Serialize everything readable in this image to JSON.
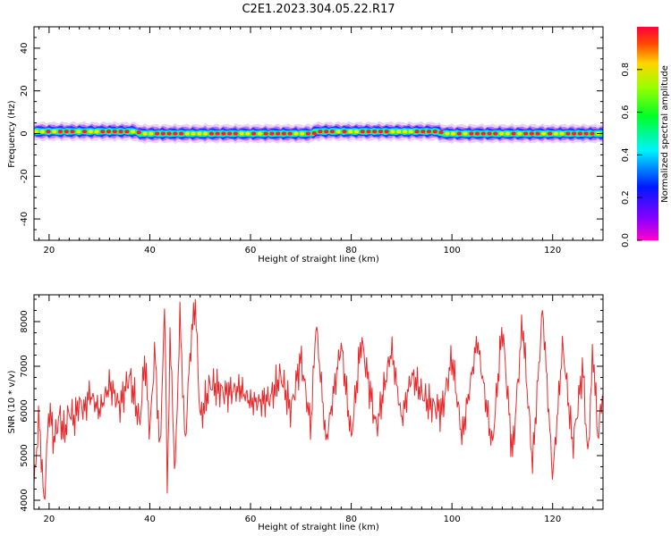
{
  "title": "C2E1.2023.304.05.22.R17",
  "chart_data": [
    {
      "type": "heatmap",
      "xlabel": "Height of straight line (km)",
      "ylabel": "Frequency (Hz)",
      "xlim": [
        17,
        130
      ],
      "ylim": [
        -50,
        50
      ],
      "xticks": [
        20,
        40,
        60,
        80,
        100,
        120
      ],
      "yticks": [
        -40,
        -20,
        0,
        20,
        40
      ],
      "colorbar": {
        "label": "Normalized spectral amplitude",
        "ticks": [
          0.0,
          0.2,
          0.4,
          0.6,
          0.8
        ],
        "range": [
          0,
          1
        ],
        "colormap": "gist_rainbow"
      },
      "ridge_frequency_hz": [
        {
          "x": 17,
          "f": 1
        },
        {
          "x": 37,
          "f": 1
        },
        {
          "x": 38,
          "f": 0
        },
        {
          "x": 72,
          "f": 0
        },
        {
          "x": 73,
          "f": 1
        },
        {
          "x": 97,
          "f": 1
        },
        {
          "x": 98,
          "f": 0
        },
        {
          "x": 130,
          "f": 0
        }
      ],
      "grid": false
    },
    {
      "type": "line",
      "xlabel": "Height of straight line (km)",
      "ylabel": "SNR (10 * v/v)",
      "xlim": [
        17,
        130
      ],
      "ylim": [
        3800,
        8600
      ],
      "xticks": [
        20,
        40,
        60,
        80,
        100,
        120
      ],
      "yticks": [
        4000,
        5000,
        6000,
        7000,
        8000
      ],
      "series_color": "#e8282a",
      "series": [
        {
          "x": [
            17,
            18,
            19,
            20,
            21,
            22,
            23,
            24,
            25,
            26,
            27,
            28,
            30,
            32,
            34,
            36,
            38,
            39,
            40,
            41,
            42,
            43,
            43.5,
            44,
            45,
            46,
            47,
            48,
            49,
            50,
            52,
            55,
            58,
            60,
            62,
            64,
            66,
            68,
            70,
            72,
            73,
            75,
            78,
            80,
            82,
            85,
            88,
            90,
            92,
            95,
            98,
            100,
            102,
            105,
            108,
            110,
            112,
            114,
            116,
            118,
            120,
            122,
            124,
            126,
            127,
            128,
            129,
            130
          ],
          "values": [
            4300,
            5900,
            3900,
            6100,
            5300,
            5900,
            5500,
            6000,
            5800,
            6200,
            6000,
            6400,
            6000,
            6600,
            6100,
            6800,
            5700,
            7200,
            5500,
            7400,
            5000,
            8500,
            3850,
            7800,
            4500,
            8200,
            5200,
            7300,
            8500,
            5800,
            6600,
            6400,
            6500,
            6200,
            6200,
            6300,
            6800,
            6000,
            7200,
            5600,
            8000,
            5300,
            7500,
            5400,
            7600,
            5600,
            7400,
            5800,
            6800,
            6200,
            6000,
            7200,
            5400,
            7600,
            5200,
            7900,
            5000,
            8000,
            4800,
            8300,
            4500,
            7500,
            5200,
            7000,
            4900,
            7400,
            5400,
            6500
          ]
        }
      ],
      "grid": false
    }
  ]
}
